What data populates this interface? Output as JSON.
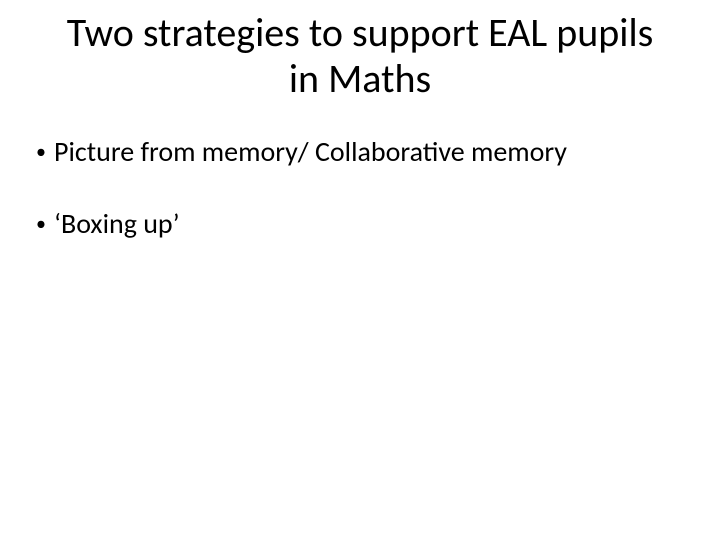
{
  "slide": {
    "background_color": "#ffffff",
    "text_color": "#000000",
    "font_family": "Calibri",
    "title": {
      "text": "Two strategies to support EAL pupils in Maths",
      "fontsize": 40,
      "align": "center"
    },
    "bullets": [
      {
        "text": "Picture from memory/ Collaborative memory"
      },
      {
        "text": "‘Boxing up’"
      }
    ],
    "bullet_fontsize": 28,
    "bullet_marker": "•"
  }
}
